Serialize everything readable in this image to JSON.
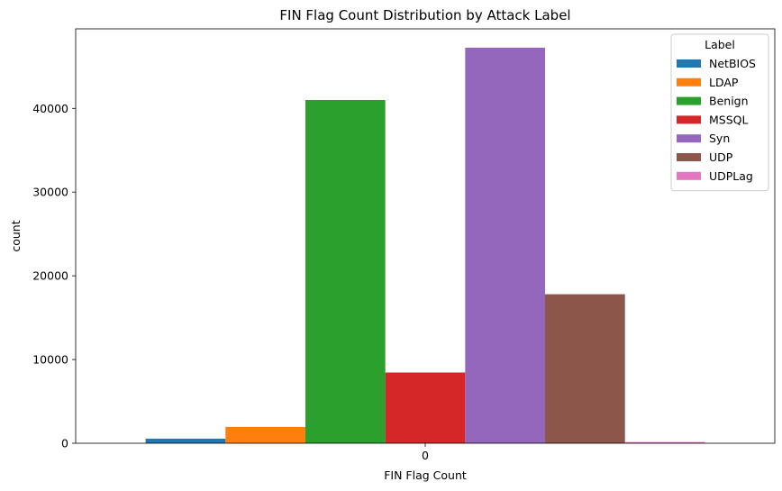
{
  "chart_data": {
    "type": "bar",
    "title": "FIN Flag Count Distribution by Attack Label",
    "xlabel": "FIN Flag Count",
    "ylabel": "count",
    "categories": [
      "0"
    ],
    "ylim": [
      0,
      49500
    ],
    "yticks": [
      0,
      10000,
      20000,
      30000,
      40000
    ],
    "yticks_text": [
      "0",
      "10000",
      "20000",
      "30000",
      "40000"
    ],
    "grid": false,
    "legend": {
      "title": "Label",
      "placement": "top-right"
    },
    "series": [
      {
        "name": "NetBIOS",
        "color": "#1f77b4",
        "values": [
          550
        ]
      },
      {
        "name": "LDAP",
        "color": "#ff7f0e",
        "values": [
          1950
        ]
      },
      {
        "name": "Benign",
        "color": "#2ca02c",
        "values": [
          41000
        ]
      },
      {
        "name": "MSSQL",
        "color": "#d62728",
        "values": [
          8450
        ]
      },
      {
        "name": "Syn",
        "color": "#9467bd",
        "values": [
          47250
        ]
      },
      {
        "name": "UDP",
        "color": "#8c564b",
        "values": [
          17800
        ]
      },
      {
        "name": "UDPLag",
        "color": "#e377c2",
        "values": [
          150
        ]
      }
    ]
  }
}
